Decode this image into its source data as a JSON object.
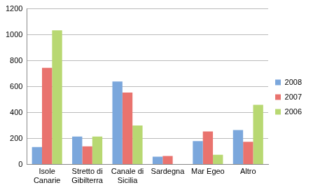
{
  "chart_data": {
    "type": "bar",
    "categories": [
      "Isole Canarie",
      "Stretto di Gibilterra",
      "Canale di Sicilia",
      "Sardegna",
      "Mar Egeo",
      "Altro"
    ],
    "series": [
      {
        "name": "2008",
        "color": "#7ba7dc",
        "values": [
          135,
          215,
          640,
          60,
          180,
          265
        ]
      },
      {
        "name": "2007",
        "color": "#e9736e",
        "values": [
          745,
          140,
          555,
          65,
          255,
          175
        ]
      },
      {
        "name": "2006",
        "color": "#b8d872",
        "values": [
          1035,
          215,
          300,
          0,
          75,
          460
        ]
      }
    ],
    "ylim": [
      0,
      1200
    ],
    "yticks": [
      0,
      200,
      400,
      600,
      800,
      1000,
      1200
    ],
    "grid": true,
    "legend": "right"
  }
}
